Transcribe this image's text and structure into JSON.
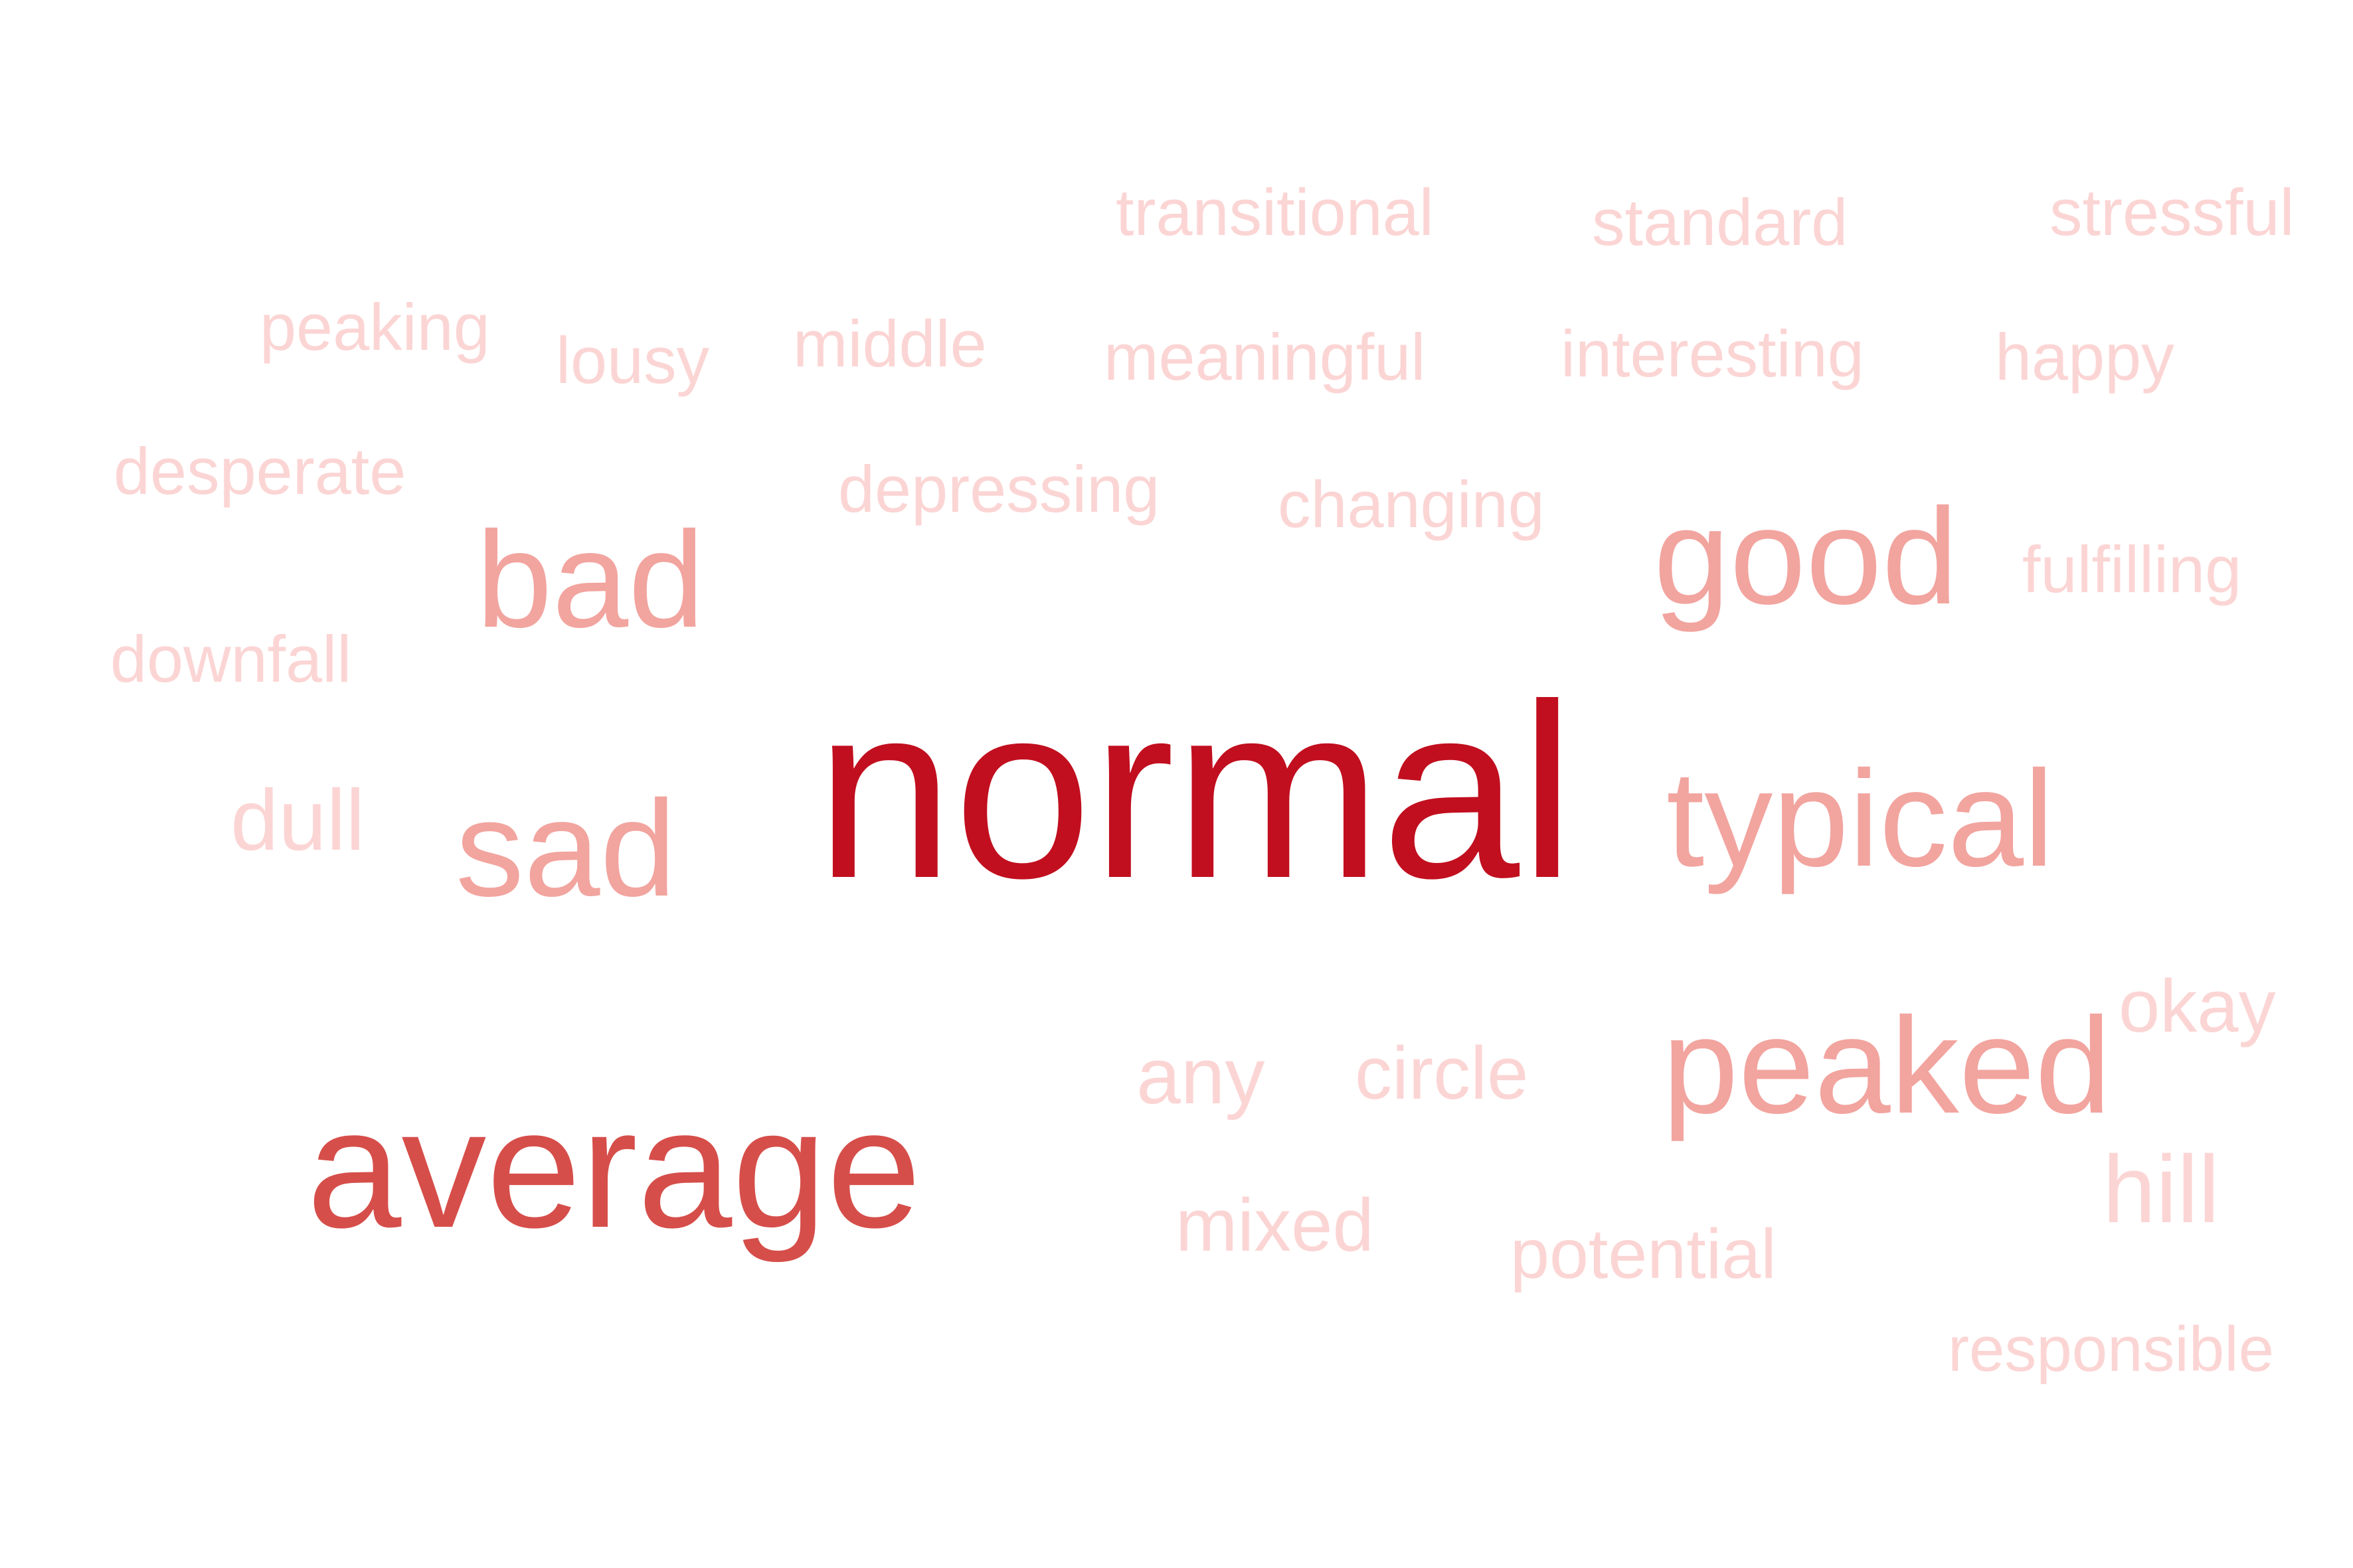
{
  "words": [
    {
      "text": "normal",
      "weight": 1.0,
      "color": "#c10f1f"
    },
    {
      "text": "average",
      "weight": 0.68,
      "color": "#d64e4a"
    },
    {
      "text": "bad",
      "weight": 0.42,
      "color": "#f2a49f"
    },
    {
      "text": "good",
      "weight": 0.42,
      "color": "#f2a49f"
    },
    {
      "text": "typical",
      "weight": 0.42,
      "color": "#f2a49f"
    },
    {
      "text": "sad",
      "weight": 0.42,
      "color": "#f2a49f"
    },
    {
      "text": "peaked",
      "weight": 0.42,
      "color": "#f2a49f"
    },
    {
      "text": "transitional",
      "weight": 0.18,
      "color": "#fbd5d4"
    },
    {
      "text": "standard",
      "weight": 0.18,
      "color": "#fbd5d4"
    },
    {
      "text": "stressful",
      "weight": 0.18,
      "color": "#fbd5d4"
    },
    {
      "text": "peaking",
      "weight": 0.18,
      "color": "#fbd5d4"
    },
    {
      "text": "lousy",
      "weight": 0.18,
      "color": "#fbd5d4"
    },
    {
      "text": "middle",
      "weight": 0.18,
      "color": "#fbd5d4"
    },
    {
      "text": "meaningful",
      "weight": 0.18,
      "color": "#fbd5d4"
    },
    {
      "text": "interesting",
      "weight": 0.18,
      "color": "#fbd5d4"
    },
    {
      "text": "happy",
      "weight": 0.18,
      "color": "#fbd5d4"
    },
    {
      "text": "desperate",
      "weight": 0.18,
      "color": "#fbd5d4"
    },
    {
      "text": "depressing",
      "weight": 0.18,
      "color": "#fbd5d4"
    },
    {
      "text": "changing",
      "weight": 0.18,
      "color": "#fbd5d4"
    },
    {
      "text": "fulfilling",
      "weight": 0.18,
      "color": "#fbd5d4"
    },
    {
      "text": "downfall",
      "weight": 0.18,
      "color": "#fbd5d4"
    },
    {
      "text": "dull",
      "weight": 0.18,
      "color": "#fbd5d4"
    },
    {
      "text": "okay",
      "weight": 0.18,
      "color": "#fbd5d4"
    },
    {
      "text": "any",
      "weight": 0.18,
      "color": "#fbd5d4"
    },
    {
      "text": "circle",
      "weight": 0.18,
      "color": "#fbd5d4"
    },
    {
      "text": "hill",
      "weight": 0.18,
      "color": "#fbd5d4"
    },
    {
      "text": "mixed",
      "weight": 0.18,
      "color": "#fbd5d4"
    },
    {
      "text": "potential",
      "weight": 0.18,
      "color": "#fbd5d4"
    },
    {
      "text": "responsible",
      "weight": 0.18,
      "color": "#fbd5d4"
    }
  ]
}
